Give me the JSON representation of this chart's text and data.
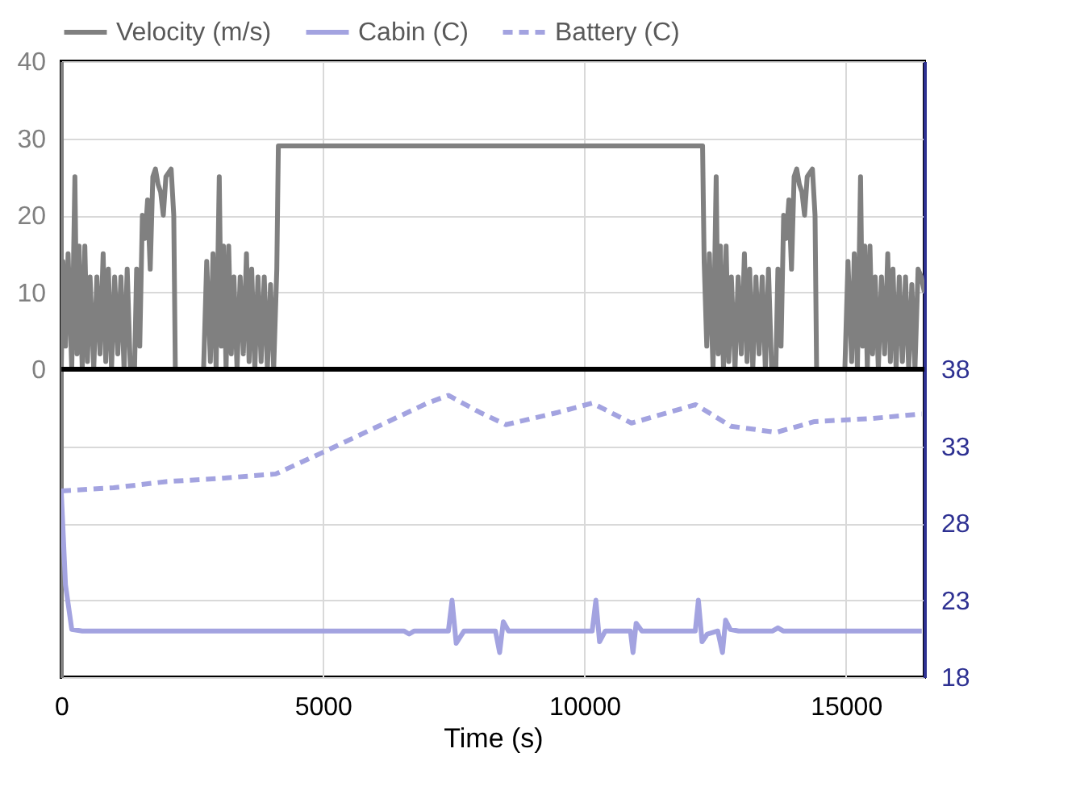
{
  "chart_data": {
    "type": "line",
    "xlabel": "Time (s)",
    "xlim": [
      0,
      16500
    ],
    "xticks": [
      0,
      5000,
      10000,
      15000
    ],
    "ylim": [
      -40,
      40
    ],
    "yticks": [
      0,
      10,
      20,
      30,
      40
    ],
    "y2lim": [
      18,
      58
    ],
    "y2ticks": [
      18,
      23,
      28,
      33,
      38
    ],
    "grid": true,
    "legend": "top",
    "marker": "none",
    "ref_lines": [
      {
        "axis": "y",
        "value": 0,
        "color": "#000000"
      }
    ],
    "series": [
      {
        "name": "Velocity (m/s)",
        "color": "#808080",
        "line_style": "solid",
        "x": [
          0,
          30,
          80,
          130,
          200,
          260,
          300,
          340,
          400,
          450,
          500,
          550,
          620,
          680,
          740,
          800,
          850,
          900,
          960,
          1020,
          1080,
          1140,
          1200,
          1260,
          1320,
          1400,
          1440,
          1500,
          1550,
          1600,
          1650,
          1700,
          1750,
          1800,
          1850,
          1900,
          1950,
          2000,
          2100,
          2150,
          2180,
          2720,
          2780,
          2850,
          2900,
          2960,
          3020,
          3060,
          3100,
          3150,
          3200,
          3250,
          3300,
          3360,
          3420,
          3480,
          3540,
          3590,
          3640,
          3700,
          3760,
          3820,
          3880,
          3940,
          4000,
          4060,
          4120,
          4150,
          12260,
          12290,
          12340,
          12390,
          12460,
          12520,
          12560,
          12600,
          12660,
          12710,
          12760,
          12810,
          12880,
          12940,
          13000,
          13060,
          13110,
          13160,
          13220,
          13280,
          13340,
          13400,
          13460,
          13520,
          13580,
          13660,
          13700,
          13760,
          13810,
          13860,
          13910,
          13960,
          14010,
          14060,
          14110,
          14160,
          14210,
          14260,
          14360,
          14410,
          14440,
          14980,
          15040,
          15110,
          15160,
          15220,
          15280,
          15320,
          15360,
          15410,
          15460,
          15510,
          15560,
          15620,
          15680,
          15740,
          15800,
          15850,
          15900,
          15960,
          16020,
          16080,
          16140,
          16200,
          16260,
          16320,
          16380,
          16440,
          16500
        ],
        "values": [
          0,
          14,
          3,
          15,
          0,
          25,
          2,
          16,
          0,
          16,
          1,
          12,
          0,
          12,
          2,
          15,
          1,
          13,
          0,
          12,
          2,
          12,
          0,
          13,
          0,
          0,
          13,
          3,
          20,
          17,
          22,
          13,
          25,
          26,
          24,
          23,
          20,
          25,
          26,
          20,
          0,
          0,
          14,
          1,
          15,
          0,
          25,
          3,
          16,
          0,
          16,
          2,
          12,
          0,
          12,
          2,
          15,
          1,
          13,
          0,
          12,
          1,
          12,
          0,
          11,
          0,
          13,
          29,
          29,
          14,
          3,
          15,
          0,
          25,
          2,
          16,
          0,
          16,
          1,
          12,
          0,
          12,
          2,
          15,
          1,
          13,
          0,
          12,
          2,
          12,
          0,
          13,
          0,
          0,
          13,
          3,
          20,
          17,
          22,
          13,
          25,
          26,
          24,
          23,
          20,
          25,
          26,
          20,
          0,
          0,
          14,
          1,
          15,
          0,
          25,
          3,
          16,
          0,
          16,
          2,
          12,
          0,
          12,
          2,
          15,
          1,
          13,
          0,
          12,
          1,
          12,
          0,
          11,
          0,
          13,
          12,
          10
        ]
      },
      {
        "name": "Cabin (C)",
        "color": "#a3a3e0",
        "line_style": "solid",
        "axis": "y2",
        "x": [
          0,
          80,
          200,
          400,
          3000,
          6550,
          6650,
          6750,
          7400,
          7470,
          7550,
          7700,
          7900,
          8300,
          8380,
          8450,
          8550,
          8700,
          10150,
          10220,
          10290,
          10400,
          10600,
          10880,
          10930,
          10990,
          11100,
          11300,
          12120,
          12180,
          12250,
          12350,
          12550,
          12640,
          12700,
          12790,
          12950,
          13600,
          13700,
          13800,
          16450
        ],
        "values": [
          30,
          24,
          21.1,
          21,
          21,
          21,
          20.8,
          21,
          21,
          23,
          20.2,
          21,
          21,
          21,
          19.6,
          21.6,
          21,
          21,
          21,
          23,
          20.3,
          21,
          21,
          21,
          19.6,
          21.5,
          21,
          21,
          21,
          23,
          20.3,
          20.8,
          21,
          19.6,
          21.7,
          21.1,
          21,
          21,
          21.2,
          21,
          21
        ]
      },
      {
        "name": "Battery (C)",
        "color": "#a3a3e0",
        "line_style": "dashed",
        "axis": "y2",
        "x": [
          0,
          1000,
          2000,
          3000,
          4100,
          5000,
          6000,
          7000,
          7400,
          8000,
          8500,
          9500,
          10150,
          10900,
          12130,
          12800,
          13670,
          14400,
          15500,
          16450
        ],
        "values": [
          30.1,
          30.3,
          30.7,
          30.9,
          31.2,
          32.6,
          34.2,
          35.8,
          36.3,
          35.2,
          34.4,
          35.2,
          35.8,
          34.5,
          35.7,
          34.3,
          33.9,
          34.6,
          34.8,
          35.1
        ]
      }
    ]
  }
}
